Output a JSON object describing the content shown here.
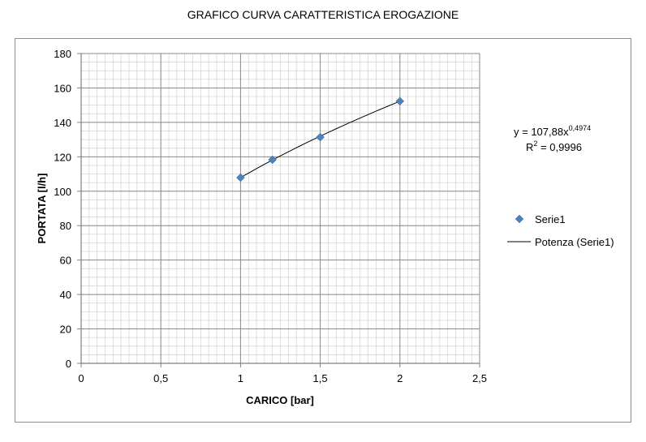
{
  "chart_data": {
    "type": "scatter",
    "title": "GRAFICO CURVA CARATTERISTICA EROGAZIONE",
    "xlabel": "CARICO [bar]",
    "ylabel": "PORTATA [l/h]",
    "xlim": [
      0,
      2.5
    ],
    "ylim": [
      0,
      180
    ],
    "x_ticks": [
      "0",
      "0,5",
      "1",
      "1,5",
      "2",
      "2,5"
    ],
    "y_ticks": [
      "0",
      "20",
      "40",
      "60",
      "80",
      "100",
      "120",
      "140",
      "160",
      "180"
    ],
    "grid": true,
    "legend_position": "right",
    "series": [
      {
        "name": "Serie1",
        "marker": "diamond",
        "color": "#4f81bd",
        "x": [
          1,
          1.2,
          1.5,
          2
        ],
        "y": [
          107.9,
          118.3,
          131.4,
          152.3
        ]
      }
    ],
    "trendline": {
      "name": "Potenza (Serie1)",
      "type": "power",
      "coefficient": 107.88,
      "exponent": 0.4974,
      "x_range": [
        1,
        2
      ],
      "color": "#000000",
      "equation_text": "y = 107,88x",
      "equation_exponent": "0,4974",
      "r2_prefix": "R",
      "r2_sup": "2",
      "r2_value": " = 0,9996"
    }
  }
}
